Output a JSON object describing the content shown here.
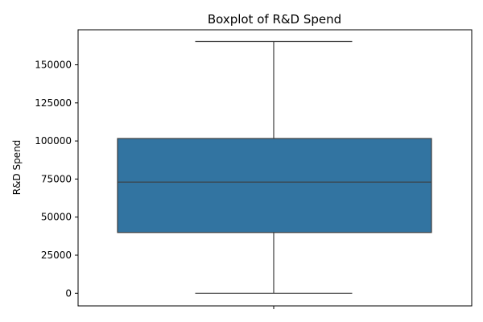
{
  "chart_data": {
    "type": "box",
    "title": "Boxplot of R&D Spend",
    "xlabel": "",
    "ylabel": "R&D Spend",
    "ylim": [
      -8300,
      173000
    ],
    "y_ticks": [
      0,
      25000,
      50000,
      75000,
      100000,
      125000,
      150000
    ],
    "y_tick_labels": [
      "0",
      "25000",
      "50000",
      "75000",
      "100000",
      "125000",
      "150000"
    ],
    "grid": false,
    "box": {
      "min": 0,
      "q1": 39900,
      "median": 73000,
      "q3": 101600,
      "max": 165350,
      "color": "#3274a1",
      "line_color": "#3d3d3d"
    }
  }
}
